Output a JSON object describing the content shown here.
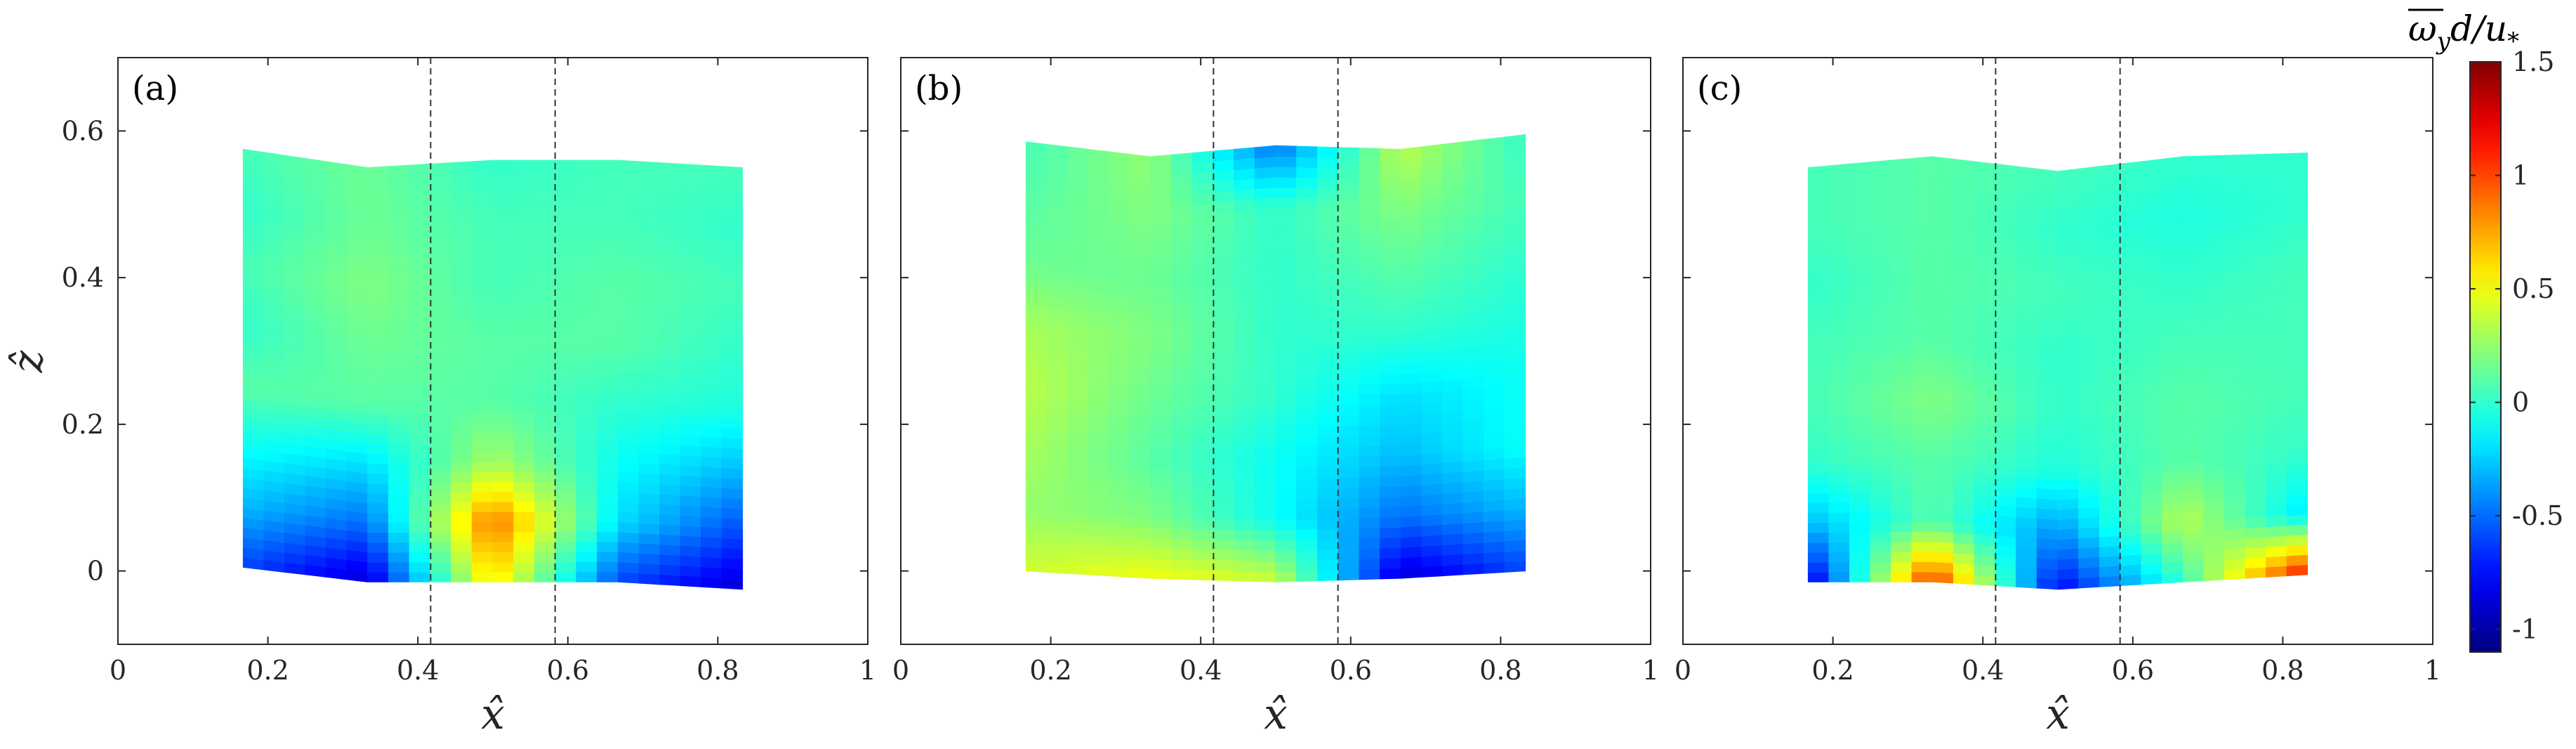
{
  "chart_data": {
    "type": "heatmap",
    "colorbar": {
      "title": "ω̄_y d/u_*",
      "title_text": "ωyd/u*",
      "range": [
        -1.1,
        1.5
      ],
      "ticks": [
        "1.5",
        "1",
        "0.5",
        "0",
        "-0.5",
        "-1"
      ],
      "tick_values": [
        1.5,
        1,
        0.5,
        0,
        -0.5,
        -1
      ],
      "colormap": "jet"
    },
    "xlabel": "x̂",
    "ylabel": "ẑ",
    "xlim": [
      0,
      1
    ],
    "ylim": [
      -0.1,
      0.7
    ],
    "xticks": [
      "0",
      "0.2",
      "0.4",
      "0.6",
      "0.8",
      "1"
    ],
    "xtick_values": [
      0,
      0.2,
      0.4,
      0.6,
      0.8,
      1
    ],
    "yticks": [
      "0",
      "0.2",
      "0.4",
      "0.6"
    ],
    "ytick_values": [
      0,
      0.2,
      0.4,
      0.6
    ],
    "panels": [
      {
        "label": "(a)",
        "dashed_lines_x": [
          0.417,
          0.583
        ],
        "grid_x": [
          0.167,
          0.333,
          0.5,
          0.667,
          0.833
        ],
        "top_z": [
          0.575,
          0.55,
          0.56,
          0.56,
          0.55
        ],
        "bottom_z": [
          0.005,
          -0.015,
          -0.015,
          -0.015,
          -0.025
        ],
        "values": [
          [
            -0.6,
            -0.9,
            0.6,
            -0.6,
            -0.9
          ],
          [
            -0.3,
            -0.5,
            0.9,
            -0.2,
            -0.6
          ],
          [
            -0.1,
            -0.2,
            0.3,
            -0.1,
            -0.3
          ],
          [
            0.1,
            0.1,
            0.1,
            0.0,
            -0.05
          ],
          [
            0.0,
            0.15,
            0.1,
            0.1,
            0.0
          ],
          [
            0.05,
            0.2,
            0.05,
            0.1,
            0.05
          ],
          [
            0.0,
            0.15,
            0.05,
            0.05,
            0.0
          ],
          [
            0.05,
            0.15,
            0.0,
            0.05,
            0.05
          ]
        ]
      },
      {
        "label": "(b)",
        "dashed_lines_x": [
          0.417,
          0.583
        ],
        "grid_x": [
          0.167,
          0.333,
          0.5,
          0.667,
          0.833
        ],
        "top_z": [
          0.585,
          0.565,
          0.58,
          0.575,
          0.595
        ],
        "bottom_z": [
          0.0,
          -0.01,
          -0.015,
          -0.01,
          0.0
        ],
        "values": [
          [
            0.4,
            0.5,
            0.4,
            -0.9,
            -0.6
          ],
          [
            0.25,
            0.2,
            -0.1,
            -0.5,
            -0.3
          ],
          [
            0.3,
            0.1,
            -0.1,
            -0.3,
            -0.1
          ],
          [
            0.35,
            0.15,
            0.0,
            -0.2,
            -0.1
          ],
          [
            0.3,
            0.2,
            0.0,
            0.0,
            -0.05
          ],
          [
            0.15,
            0.15,
            0.0,
            0.1,
            0.0
          ],
          [
            0.1,
            0.2,
            0.0,
            0.2,
            0.05
          ],
          [
            0.05,
            0.25,
            -0.5,
            0.35,
            0.0
          ]
        ]
      },
      {
        "label": "(c)",
        "dashed_lines_x": [
          0.417,
          0.583
        ],
        "grid_x": [
          0.167,
          0.333,
          0.5,
          0.667,
          0.833
        ],
        "top_z": [
          0.55,
          0.565,
          0.545,
          0.565,
          0.57
        ],
        "bottom_z": [
          -0.015,
          -0.015,
          -0.025,
          -0.015,
          -0.005
        ],
        "values": [
          [
            -0.9,
            1.1,
            -0.8,
            0.0,
            1.2
          ],
          [
            -0.3,
            0.1,
            -0.4,
            0.35,
            -0.2
          ],
          [
            0.0,
            0.1,
            -0.05,
            0.1,
            0.0
          ],
          [
            0.05,
            0.2,
            0.0,
            0.1,
            0.05
          ],
          [
            0.05,
            0.1,
            0.0,
            0.05,
            0.05
          ],
          [
            0.0,
            0.1,
            0.05,
            0.0,
            0.05
          ],
          [
            0.05,
            0.1,
            0.0,
            -0.05,
            0.0
          ],
          [
            0.05,
            0.1,
            0.05,
            0.0,
            0.0
          ]
        ]
      }
    ]
  }
}
